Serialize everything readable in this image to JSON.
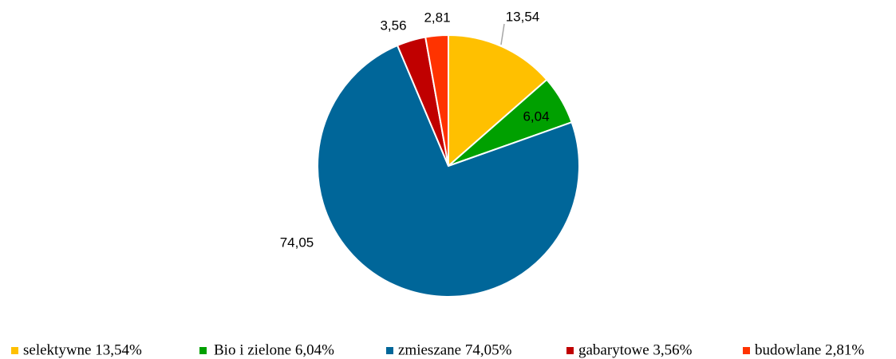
{
  "chart_data": {
    "type": "pie",
    "categories": [
      "selektywne 13,54%",
      "Bio i zielone 6,04%",
      "zmieszane 74,05%",
      "gabarytowe 3,56%",
      "budowlane 2,81%"
    ],
    "values": [
      13.54,
      6.04,
      74.05,
      3.56,
      2.81
    ],
    "value_labels": [
      "13,54",
      "6,04",
      "74,05",
      "3,56",
      "2,81"
    ],
    "colors": [
      "#ffc000",
      "#00a000",
      "#006699",
      "#c00000",
      "#ff3300"
    ],
    "legend": "bottom"
  }
}
